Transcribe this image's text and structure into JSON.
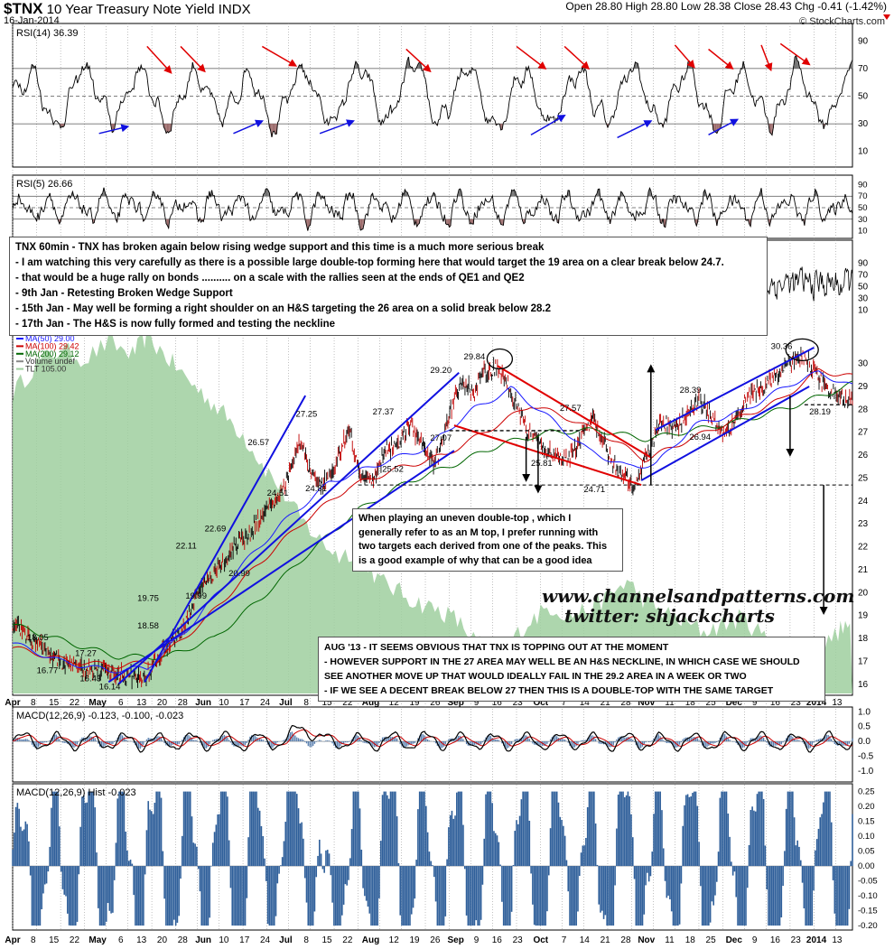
{
  "header": {
    "symbol": "$TNX",
    "name": "10 Year Treasury Note Yield INDX",
    "date": "16-Jan-2014",
    "ohlc": "Open 28.80  High 28.80  Low 28.38  Close 28.43  Chg -0.41 (-1.42%)",
    "brand": "© StockCharts.com"
  },
  "notes": {
    "main_lines": [
      "TNX 60min - TNX has broken again below rising wedge support and this time is a much more serious break",
      "- I am watching this very carefully as there is a possible large double-top forming here that would target the 19 area on a clear break below 24.7.",
      "- that would be a huge rally on bonds .......... on a scale with the rallies seen at the ends of QE1 and QE2",
      "- 9th Jan - Retesting Broken Wedge Support",
      "- 15th Jan - May well be forming a right shoulder on an H&S targeting the 26 area on a solid break below 28.2",
      "- 17th Jan - The H&S is now fully formed and testing the neckline"
    ],
    "mtop": "When playing an uneven double-top , which I generally refer to as an M top, I prefer running with two targets each derived from one of the peaks. This is a good example of why that can be a good idea",
    "aug_lines": [
      "AUG '13 - IT SEEMS OBVIOUS THAT TNX IS TOPPING OUT AT THE MOMENT",
      "- HOWEVER SUPPORT IN THE 27 AREA MAY WELL BE AN H&S NECKLINE, IN WHICH CASE WE SHOULD",
      "SEE ANOTHER MOVE UP THAT WOULD IDEALLY FAIL IN THE 29.2 AREA IN A WEEK OR TWO",
      "- IF WE SEE A DECENT BREAK BELOW 27 THEN THIS IS A DOUBLE-TOP WITH THE SAME TARGET"
    ],
    "watermark_1": "www.channelsandpatterns.com",
    "watermark_2": "twitter: shjackcharts"
  },
  "colors": {
    "price": "#000000",
    "ma50": "#1a1aff",
    "ma100": "#cc0000",
    "ma200": "#006600",
    "tlt_fill": "#9fcf9f",
    "trend_blue": "#1010e0",
    "trend_red": "#e00000",
    "macd_hist": "#2f5f9a",
    "rsi_fill_over": "#6e6e6e",
    "rsi_fill_under": "#9c6b6b"
  },
  "chart_data": [
    {
      "type": "line",
      "title": "RSI(14) 36.39",
      "series": [
        {
          "name": "RSI(14)",
          "last": 36.39
        }
      ],
      "y_ticks": [
        10,
        30,
        50,
        70,
        90
      ],
      "ylim": [
        0,
        100
      ]
    },
    {
      "type": "line",
      "title": "RSI(5) 26.66",
      "series": [
        {
          "name": "RSI(5)",
          "last": 26.66
        }
      ],
      "y_ticks": [
        10,
        30,
        50,
        70,
        90
      ],
      "ylim": [
        0,
        100
      ]
    },
    {
      "type": "line",
      "title": "TNX price",
      "x_tick_labels": [
        "Apr",
        "8",
        "15",
        "22",
        "May",
        "6",
        "13",
        "20",
        "28",
        "Jun",
        "10",
        "17",
        "24",
        "Jul",
        "8",
        "15",
        "22",
        "Aug",
        "12",
        "19",
        "26",
        "Sep",
        "9",
        "16",
        "23",
        "Oct",
        "7",
        "14",
        "21",
        "28",
        "Nov",
        "11",
        "18",
        "25",
        "Dec",
        "9",
        "16",
        "23",
        "2014",
        "13"
      ],
      "y_ticks": [
        16,
        17,
        18,
        19,
        20,
        21,
        22,
        23,
        24,
        25,
        26,
        27,
        28,
        29,
        30
      ],
      "ylim": [
        15.6,
        31.6
      ],
      "legend": [
        {
          "label": "MA(50) 29.00",
          "color": "#1a1aff"
        },
        {
          "label": "MA(100) 29.42",
          "color": "#cc0000"
        },
        {
          "label": "MA(200) 29.12",
          "color": "#006600"
        },
        {
          "label": "Volume undef",
          "color": "#888888"
        },
        {
          "label": "TLT 105.00",
          "color": "#9fcf9f"
        }
      ],
      "price_path": [
        [
          0,
          18.6
        ],
        [
          3,
          18.2
        ],
        [
          6,
          17.6
        ],
        [
          10,
          17.0
        ],
        [
          14,
          16.7
        ],
        [
          18,
          16.6
        ],
        [
          22,
          16.45
        ],
        [
          26,
          16.3
        ],
        [
          27.5,
          16.14
        ],
        [
          29,
          16.8
        ],
        [
          33,
          17.8
        ],
        [
          36,
          18.6
        ],
        [
          38,
          19.7
        ],
        [
          41,
          20.6
        ],
        [
          45,
          21.7
        ],
        [
          49,
          22.5
        ],
        [
          53,
          23.6
        ],
        [
          56,
          24.4
        ],
        [
          58,
          25.6
        ],
        [
          60,
          26.6
        ],
        [
          62,
          25.2
        ],
        [
          64,
          24.6
        ],
        [
          66,
          25.0
        ],
        [
          68,
          26.0
        ],
        [
          70,
          27.25
        ],
        [
          72,
          25.5
        ],
        [
          74,
          24.8
        ],
        [
          76,
          25.3
        ],
        [
          78,
          26.2
        ],
        [
          80,
          26.5
        ],
        [
          83,
          27.3
        ],
        [
          86,
          26.3
        ],
        [
          88,
          25.6
        ],
        [
          90,
          27.0
        ],
        [
          92,
          28.4
        ],
        [
          94,
          29.2
        ],
        [
          96,
          28.6
        ],
        [
          98,
          29.5
        ],
        [
          101,
          29.84
        ],
        [
          103,
          29.1
        ],
        [
          105,
          28.2
        ],
        [
          107,
          27.2
        ],
        [
          109,
          26.8
        ],
        [
          111,
          26.2
        ],
        [
          113,
          26.0
        ],
        [
          115,
          25.8
        ],
        [
          117,
          26.2
        ],
        [
          119,
          27.1
        ],
        [
          121,
          27.57
        ],
        [
          123,
          26.6
        ],
        [
          125,
          25.7
        ],
        [
          127,
          25.0
        ],
        [
          129,
          24.8
        ],
        [
          130,
          24.71
        ],
        [
          131,
          25.4
        ],
        [
          133,
          26.4
        ],
        [
          135,
          27.6
        ],
        [
          137,
          27.2
        ],
        [
          139,
          27.4
        ],
        [
          141,
          27.9
        ],
        [
          143,
          28.39
        ],
        [
          145,
          27.9
        ],
        [
          147,
          27.2
        ],
        [
          149,
          26.94
        ],
        [
          151,
          27.6
        ],
        [
          153,
          28.4
        ],
        [
          155,
          28.8
        ],
        [
          157,
          29.0
        ],
        [
          160,
          29.7
        ],
        [
          162,
          30.1
        ],
        [
          164,
          30.36
        ],
        [
          166,
          30.0
        ],
        [
          168,
          29.4
        ],
        [
          170,
          28.8
        ],
        [
          172,
          28.6
        ],
        [
          174,
          28.2
        ],
        [
          175,
          28.43
        ]
      ],
      "ma50_path": [
        [
          0,
          17.8
        ],
        [
          10,
          17.0
        ],
        [
          20,
          16.6
        ],
        [
          28,
          16.7
        ],
        [
          36,
          18.3
        ],
        [
          46,
          20.8
        ],
        [
          56,
          23.0
        ],
        [
          66,
          24.8
        ],
        [
          76,
          25.6
        ],
        [
          86,
          26.3
        ],
        [
          96,
          28.0
        ],
        [
          104,
          28.9
        ],
        [
          112,
          27.6
        ],
        [
          120,
          26.2
        ],
        [
          128,
          25.5
        ],
        [
          134,
          25.6
        ],
        [
          142,
          27.3
        ],
        [
          152,
          27.9
        ],
        [
          162,
          29.1
        ],
        [
          168,
          29.6
        ],
        [
          175,
          29.0
        ]
      ],
      "ma100_path": [
        [
          0,
          17.6
        ],
        [
          12,
          17.0
        ],
        [
          22,
          16.8
        ],
        [
          30,
          17.0
        ],
        [
          40,
          18.8
        ],
        [
          50,
          21.0
        ],
        [
          60,
          23.0
        ],
        [
          70,
          24.6
        ],
        [
          80,
          25.4
        ],
        [
          90,
          26.0
        ],
        [
          100,
          27.2
        ],
        [
          108,
          28.2
        ],
        [
          116,
          27.6
        ],
        [
          124,
          26.8
        ],
        [
          132,
          25.8
        ],
        [
          140,
          26.6
        ],
        [
          150,
          27.5
        ],
        [
          160,
          28.4
        ],
        [
          168,
          29.7
        ],
        [
          175,
          29.42
        ]
      ],
      "ma200_path": [
        [
          0,
          18.6
        ],
        [
          12,
          17.8
        ],
        [
          22,
          17.2
        ],
        [
          32,
          17.2
        ],
        [
          42,
          18.0
        ],
        [
          52,
          19.8
        ],
        [
          62,
          21.8
        ],
        [
          72,
          23.6
        ],
        [
          82,
          24.8
        ],
        [
          92,
          25.6
        ],
        [
          102,
          26.5
        ],
        [
          112,
          27.0
        ],
        [
          122,
          27.1
        ],
        [
          132,
          26.7
        ],
        [
          142,
          27.1
        ],
        [
          152,
          27.5
        ],
        [
          162,
          28.1
        ],
        [
          170,
          28.7
        ],
        [
          175,
          29.12
        ]
      ],
      "annotations": [
        "16.77",
        "16.43",
        "16.14",
        "18.05",
        "17.27",
        "19.75",
        "18.58",
        "19.99",
        "20.99",
        "22.11",
        "22.69",
        "26.57",
        "24.51",
        "27.25",
        "24.81",
        "25.52",
        "27.37",
        "29.20",
        "29.84",
        "27.07",
        "25.81",
        "27.57",
        "24.71",
        "28.39",
        "26.94",
        "30.36",
        "28.19"
      ]
    },
    {
      "type": "line",
      "title": "MACD(12,26,9) -0.123, -0.100, -0.023",
      "series": [
        {
          "name": "MACD",
          "last": -0.123
        },
        {
          "name": "Signal",
          "last": -0.1
        }
      ],
      "y_ticks": [
        -1.0,
        -0.5,
        0.0,
        0.5,
        1.0
      ],
      "ylim": [
        -1.25,
        1.1
      ]
    },
    {
      "type": "bar",
      "title": "MACD(12,26,9) Hist -0.023",
      "series": [
        {
          "name": "Hist",
          "last": -0.023
        }
      ],
      "y_ticks": [
        -0.2,
        -0.15,
        -0.1,
        -0.05,
        0.0,
        0.05,
        0.1,
        0.15,
        0.2,
        0.25
      ],
      "ylim": [
        -0.215,
        0.27
      ]
    }
  ]
}
